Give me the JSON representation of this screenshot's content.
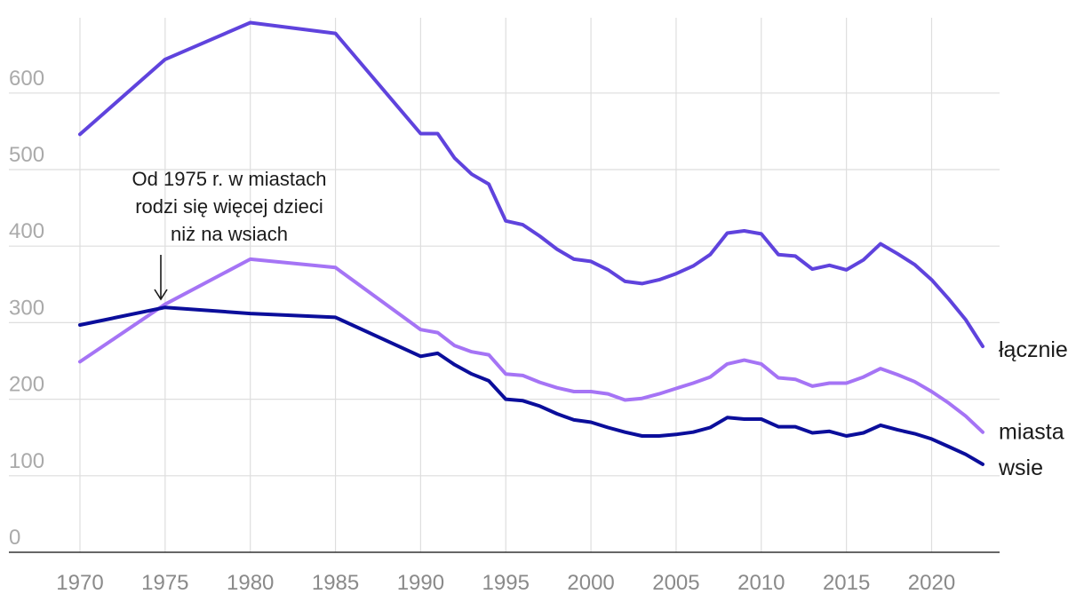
{
  "chart_data": {
    "type": "line",
    "title": "",
    "xlabel": "",
    "ylabel": "",
    "xlim": [
      1970,
      2023
    ],
    "ylim": [
      0,
      700
    ],
    "x_ticks": [
      1970,
      1975,
      1980,
      1985,
      1990,
      1995,
      2000,
      2005,
      2010,
      2015,
      2020
    ],
    "y_ticks": [
      0,
      100,
      200,
      300,
      400,
      500,
      600
    ],
    "grid": true,
    "x": [
      1970,
      1975,
      1980,
      1985,
      1990,
      1991,
      1992,
      1993,
      1994,
      1995,
      1996,
      1997,
      1998,
      1999,
      2000,
      2001,
      2002,
      2003,
      2004,
      2005,
      2006,
      2007,
      2008,
      2009,
      2010,
      2011,
      2012,
      2013,
      2014,
      2015,
      2016,
      2017,
      2018,
      2019,
      2020,
      2021,
      2022,
      2023
    ],
    "series": [
      {
        "name": "łącznie",
        "color": "#5f43dd",
        "values": [
          546,
          644,
          692,
          678,
          547,
          547,
          515,
          494,
          481,
          433,
          428,
          413,
          396,
          383,
          380,
          369,
          354,
          351,
          356,
          364,
          374,
          389,
          417,
          420,
          416,
          389,
          387,
          370,
          375,
          369,
          382,
          403,
          390,
          376,
          356,
          331,
          304,
          269
        ]
      },
      {
        "name": "miasta",
        "color": "#a574f5",
        "values": [
          249,
          324,
          383,
          372,
          291,
          287,
          270,
          262,
          258,
          233,
          231,
          222,
          215,
          210,
          210,
          207,
          199,
          201,
          207,
          214,
          221,
          229,
          246,
          251,
          246,
          228,
          226,
          217,
          221,
          221,
          229,
          240,
          232,
          223,
          210,
          195,
          178,
          157
        ]
      },
      {
        "name": "wsie",
        "color": "#0b0e9b",
        "values": [
          297,
          320,
          312,
          307,
          256,
          260,
          245,
          233,
          224,
          200,
          198,
          191,
          181,
          173,
          170,
          163,
          157,
          152,
          152,
          154,
          157,
          163,
          176,
          174,
          174,
          164,
          164,
          156,
          158,
          152,
          156,
          166,
          160,
          155,
          148,
          138,
          128,
          115
        ]
      }
    ],
    "annotations": [
      {
        "lines": [
          "Od 1975 r. w miastach",
          "rodzi się więcej dzieci",
          "niż na wsiach"
        ],
        "x": 1975,
        "y": 320
      }
    ]
  }
}
